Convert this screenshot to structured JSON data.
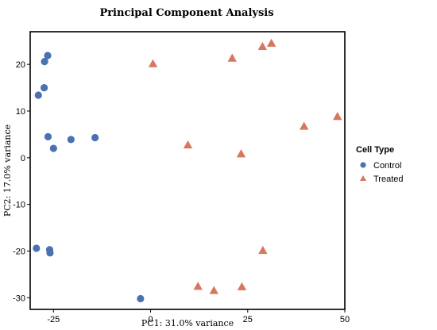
{
  "chart_data": {
    "type": "scatter",
    "title": "Principal  Component Analysis",
    "xlabel": "PC1: 31.0% variance",
    "ylabel": "PC2: 17.0% variance",
    "xlim": [
      -31,
      50
    ],
    "ylim": [
      -32.5,
      27
    ],
    "x_ticks": [
      -25,
      0,
      25,
      50
    ],
    "x_tick_labels": [
      "-25",
      "0",
      "25",
      "50"
    ],
    "y_ticks": [
      -30,
      -20,
      -10,
      0,
      10,
      20
    ],
    "y_tick_labels": [
      "-30",
      "-20",
      "-10",
      "0",
      "10",
      "20"
    ],
    "grid": false,
    "legend": {
      "title": "Cell Type",
      "placement": "right",
      "entries": [
        "Control",
        "Treated"
      ]
    },
    "series": [
      {
        "name": "Control",
        "marker": "circle",
        "color": "#4a72b0",
        "points": [
          {
            "x": -26.5,
            "y": 21.9
          },
          {
            "x": -27.3,
            "y": 20.6
          },
          {
            "x": -27.4,
            "y": 15.0
          },
          {
            "x": -28.9,
            "y": 13.4
          },
          {
            "x": -26.4,
            "y": 4.5
          },
          {
            "x": -25.0,
            "y": 2.0
          },
          {
            "x": -20.5,
            "y": 3.9
          },
          {
            "x": -14.3,
            "y": 4.3
          },
          {
            "x": -29.4,
            "y": -19.4
          },
          {
            "x": -26.0,
            "y": -19.7
          },
          {
            "x": -25.9,
            "y": -20.4
          },
          {
            "x": -2.6,
            "y": -30.2
          }
        ]
      },
      {
        "name": "Treated",
        "marker": "triangle",
        "color": "#d8775f",
        "points": [
          {
            "x": 0.6,
            "y": 20.1
          },
          {
            "x": 21.0,
            "y": 21.3
          },
          {
            "x": 28.8,
            "y": 23.8
          },
          {
            "x": 31.1,
            "y": 24.5
          },
          {
            "x": 39.5,
            "y": 6.7
          },
          {
            "x": 48.1,
            "y": 8.8
          },
          {
            "x": 9.6,
            "y": 2.7
          },
          {
            "x": 23.3,
            "y": 0.8
          },
          {
            "x": 28.9,
            "y": -19.9
          },
          {
            "x": 12.2,
            "y": -27.6
          },
          {
            "x": 16.3,
            "y": -28.5
          },
          {
            "x": 23.5,
            "y": -27.7
          }
        ]
      }
    ]
  }
}
